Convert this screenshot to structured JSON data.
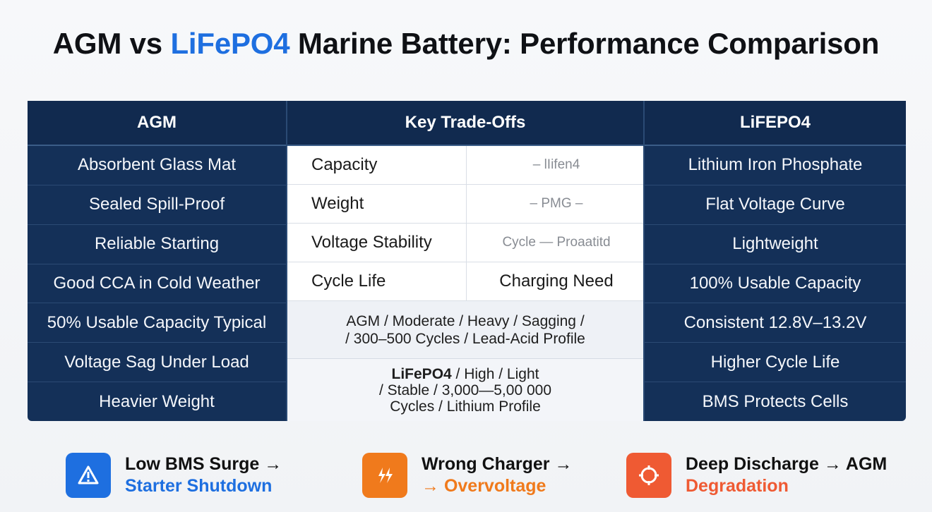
{
  "title": {
    "part1": "AGM vs ",
    "highlight": "LiFePO4",
    "part2": " Marine Battery: Performance Comparison"
  },
  "colors": {
    "navy": "#143058",
    "accent_blue": "#1e6fe0",
    "accent_orange": "#f07a1c",
    "accent_red": "#ef5a33"
  },
  "table": {
    "left_header": "AGM",
    "middle_header": "Key Trade-Offs",
    "right_header": "LiFEPO4",
    "left_items": [
      "Absorbent Glass Mat",
      "Sealed Spill-Proof",
      "Reliable Starting",
      "Good CCA in Cold Weather",
      "50% Usable Capacity Typical",
      "Voltage Sag Under Load",
      "Heavier Weight"
    ],
    "right_items": [
      "Lithium Iron Phosphate",
      "Flat Voltage Curve",
      "Lightweight",
      "100% Usable Capacity",
      "Consistent 12.8V–13.2V",
      "Higher Cycle Life",
      "BMS Protects Cells"
    ],
    "middle_rows": [
      {
        "key": "Capacity",
        "value": "– lIifen4"
      },
      {
        "key": "Weight",
        "value": "– PMG –"
      },
      {
        "key": "Voltage Stability",
        "value": "Cycle — Proaatitd"
      },
      {
        "key": "Cycle Life",
        "value": "Charging Need"
      }
    ],
    "summary_agm": {
      "line1": "AGM / Moderate / Heavy / Sagging /",
      "line2": "/ 300–500 Cycles / Lead-Acid Profile"
    },
    "summary_lifepo4": {
      "bold": "LiFePO4",
      "line1_rest": " / High / Light",
      "line2": "/ Stable / 3,000—5,00 000",
      "line3": "Cycles / Lithium Profile"
    }
  },
  "alerts": [
    {
      "icon": "warning-icon",
      "line1": "Low BMS Surge →",
      "line2": "Starter Shutdown",
      "color": "#1e6fe0"
    },
    {
      "icon": "lightning-icon",
      "line1": "Wrong Charger →",
      "line2": "→ Overvoltage",
      "color": "#f07a1c"
    },
    {
      "icon": "discharge-cycle-icon",
      "line1": "Deep Discharge → AGM",
      "line2": "Degradation",
      "color": "#ef5a33"
    }
  ]
}
